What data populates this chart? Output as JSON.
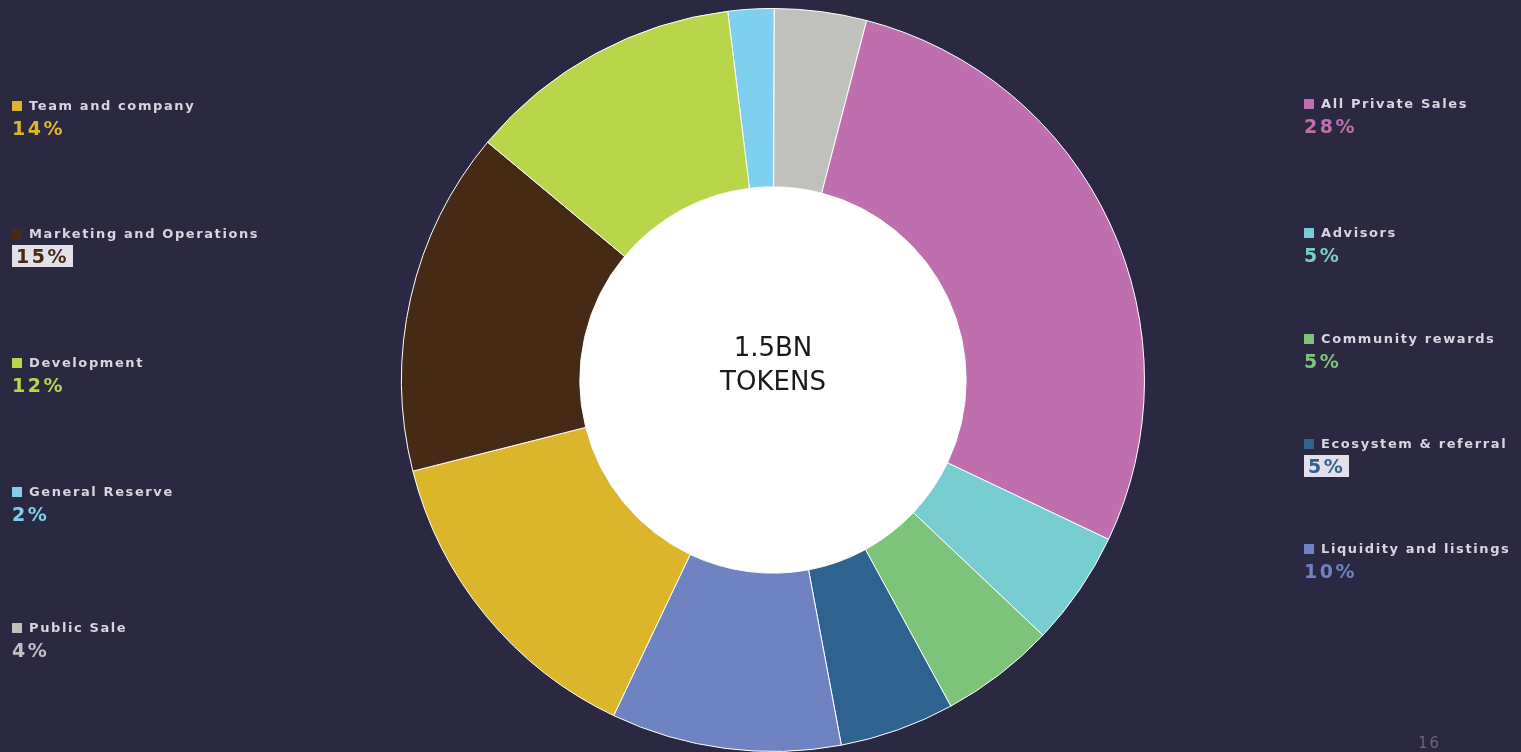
{
  "chart_data": {
    "type": "donut",
    "categories": [
      "General Reserve",
      "Public Sale",
      "All Private Sales",
      "Advisors",
      "Community rewards",
      "Ecosystem & referral",
      "Liquidity and listings",
      "Team and company",
      "Marketing and Operations",
      "Development"
    ],
    "values": [
      2,
      4,
      28,
      5,
      5,
      5,
      10,
      14,
      15,
      12
    ],
    "colors": [
      "#7fd0ee",
      "#c0c0bc",
      "#bf6fad",
      "#78cdd0",
      "#7dc47a",
      "#2e6390",
      "#6f83c2",
      "#dbb52a",
      "#472a15",
      "#b9d64b"
    ],
    "legend": "left",
    "value_labels": [
      "2%",
      "4%",
      "28%",
      "5%",
      "5%",
      "5%",
      "10%",
      "14%",
      "15%",
      "12%"
    ],
    "annotations": [
      "1.5BN TOKENS",
      "16"
    ]
  }
}
